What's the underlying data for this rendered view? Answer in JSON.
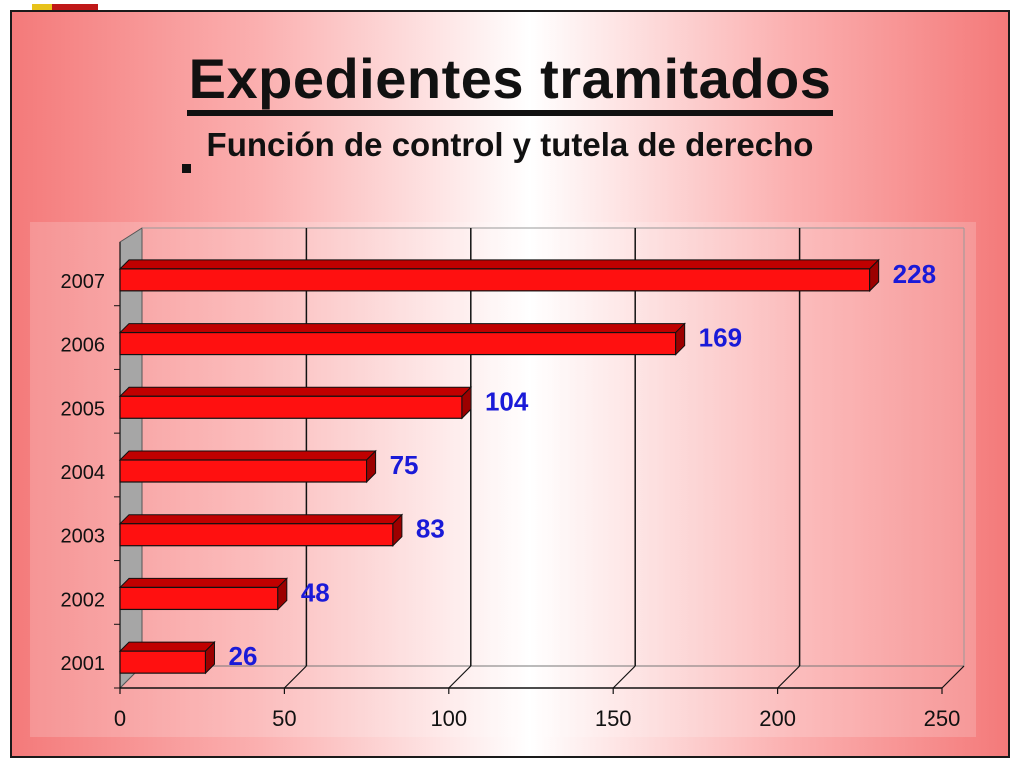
{
  "slide": {
    "title": "Expedientes tramitados",
    "subtitle": "Función de control y tutela de derecho"
  },
  "colors": {
    "bar": "#ff1010",
    "bar_dark": "#9c0000",
    "value_label": "#1a1ad8",
    "gridline": "#111111",
    "wall": "#a6a6a6"
  },
  "chart_data": {
    "type": "bar",
    "orientation": "horizontal",
    "categories": [
      "2001",
      "2002",
      "2003",
      "2004",
      "2005",
      "2006",
      "2007"
    ],
    "values": [
      26,
      48,
      83,
      75,
      104,
      169,
      228
    ],
    "xlim": [
      0,
      250
    ],
    "xticks": [
      0,
      50,
      100,
      150,
      200,
      250
    ],
    "grid": true,
    "legend": false,
    "data_labels": true
  }
}
